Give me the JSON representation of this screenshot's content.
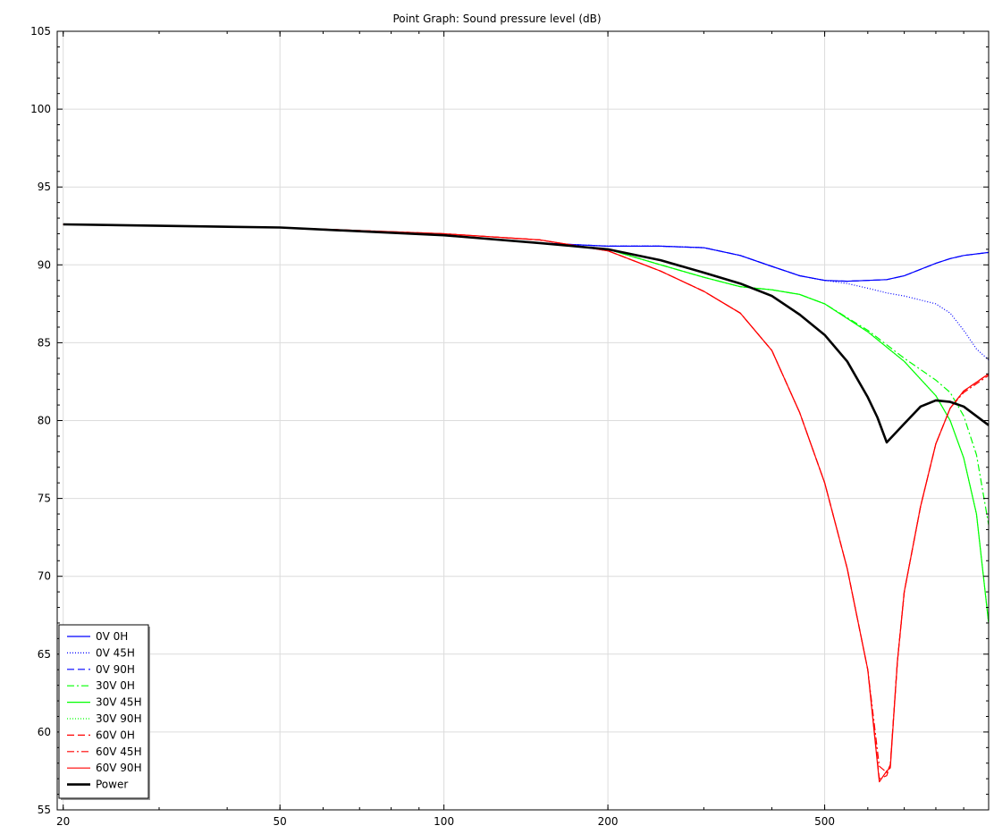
{
  "chart_data": {
    "type": "line",
    "title": "Point Graph: Sound pressure level (dB)",
    "xlabel": "",
    "ylabel": "",
    "xscale": "log",
    "xlim": [
      19.5,
      1000
    ],
    "ylim": [
      55,
      105
    ],
    "xticks": [
      20,
      50,
      100,
      200,
      500
    ],
    "yticks": [
      55,
      60,
      65,
      70,
      75,
      80,
      85,
      90,
      95,
      100,
      105
    ],
    "grid": true,
    "legend_position": "bottom-left",
    "series": [
      {
        "name": "0V 0H",
        "color": "#0000ff",
        "dash": "solid",
        "width": 1.2,
        "points": [
          [
            20,
            92.6
          ],
          [
            50,
            92.4
          ],
          [
            100,
            91.9
          ],
          [
            150,
            91.4
          ],
          [
            200,
            91.2
          ],
          [
            250,
            91.2
          ],
          [
            300,
            91.1
          ],
          [
            350,
            90.6
          ],
          [
            400,
            89.9
          ],
          [
            450,
            89.3
          ],
          [
            500,
            89.0
          ],
          [
            550,
            88.95
          ],
          [
            600,
            89.0
          ],
          [
            650,
            89.05
          ],
          [
            700,
            89.3
          ],
          [
            800,
            90.1
          ],
          [
            850,
            90.4
          ],
          [
            900,
            90.6
          ],
          [
            1000,
            90.8
          ]
        ]
      },
      {
        "name": "0V 45H",
        "color": "#0000ff",
        "dash": "1,2",
        "width": 1.2,
        "points": [
          [
            20,
            92.6
          ],
          [
            50,
            92.4
          ],
          [
            100,
            91.9
          ],
          [
            150,
            91.4
          ],
          [
            200,
            91.2
          ],
          [
            250,
            91.2
          ],
          [
            300,
            91.1
          ],
          [
            350,
            90.6
          ],
          [
            400,
            89.9
          ],
          [
            450,
            89.3
          ],
          [
            500,
            89.0
          ],
          [
            550,
            88.8
          ],
          [
            600,
            88.5
          ],
          [
            650,
            88.2
          ],
          [
            700,
            88.0
          ],
          [
            800,
            87.5
          ],
          [
            850,
            86.9
          ],
          [
            900,
            85.8
          ],
          [
            950,
            84.6
          ],
          [
            1000,
            83.9
          ]
        ]
      },
      {
        "name": "0V 90H",
        "color": "#0000ff",
        "dash": "8,4",
        "width": 1.2,
        "points": [
          [
            20,
            92.6
          ],
          [
            50,
            92.4
          ],
          [
            100,
            91.9
          ],
          [
            150,
            91.4
          ],
          [
            200,
            91.2
          ],
          [
            250,
            91.2
          ],
          [
            300,
            91.1
          ],
          [
            350,
            90.6
          ],
          [
            400,
            89.9
          ],
          [
            450,
            89.3
          ],
          [
            500,
            89.0
          ],
          [
            550,
            88.95
          ],
          [
            600,
            89.0
          ],
          [
            650,
            89.05
          ],
          [
            700,
            89.3
          ],
          [
            800,
            90.1
          ],
          [
            850,
            90.4
          ],
          [
            900,
            90.6
          ],
          [
            1000,
            90.8
          ]
        ]
      },
      {
        "name": "30V 0H",
        "color": "#00ff00",
        "dash": "8,3,2,3",
        "width": 1.2,
        "points": [
          [
            20,
            92.6
          ],
          [
            50,
            92.4
          ],
          [
            100,
            91.9
          ],
          [
            150,
            91.4
          ],
          [
            200,
            91.0
          ],
          [
            250,
            90.0
          ],
          [
            300,
            89.2
          ],
          [
            350,
            88.6
          ],
          [
            400,
            88.4
          ],
          [
            450,
            88.1
          ],
          [
            500,
            87.5
          ],
          [
            600,
            85.8
          ],
          [
            700,
            84.0
          ],
          [
            800,
            82.6
          ],
          [
            850,
            81.8
          ],
          [
            900,
            80.3
          ],
          [
            950,
            77.8
          ],
          [
            1000,
            73.3
          ]
        ]
      },
      {
        "name": "30V 45H",
        "color": "#00ff00",
        "dash": "solid",
        "width": 1.2,
        "points": [
          [
            20,
            92.6
          ],
          [
            50,
            92.4
          ],
          [
            100,
            91.9
          ],
          [
            150,
            91.4
          ],
          [
            200,
            91.0
          ],
          [
            250,
            90.0
          ],
          [
            300,
            89.2
          ],
          [
            350,
            88.6
          ],
          [
            400,
            88.4
          ],
          [
            450,
            88.1
          ],
          [
            500,
            87.5
          ],
          [
            600,
            85.7
          ],
          [
            700,
            83.8
          ],
          [
            800,
            81.6
          ],
          [
            850,
            80.0
          ],
          [
            900,
            77.6
          ],
          [
            950,
            74.0
          ],
          [
            1000,
            67.0
          ]
        ]
      },
      {
        "name": "30V 90H",
        "color": "#00ff00",
        "dash": "1,2",
        "width": 1.2,
        "points": [
          [
            20,
            92.6
          ],
          [
            50,
            92.4
          ],
          [
            100,
            91.9
          ],
          [
            150,
            91.4
          ],
          [
            200,
            91.0
          ],
          [
            250,
            90.0
          ],
          [
            300,
            89.2
          ],
          [
            350,
            88.6
          ],
          [
            400,
            88.4
          ],
          [
            450,
            88.1
          ],
          [
            500,
            87.5
          ],
          [
            600,
            85.7
          ],
          [
            700,
            83.8
          ],
          [
            800,
            81.6
          ],
          [
            850,
            80.0
          ],
          [
            900,
            77.6
          ],
          [
            950,
            74.0
          ],
          [
            1000,
            67.0
          ]
        ]
      },
      {
        "name": "60V 0H",
        "color": "#ff0000",
        "dash": "8,4",
        "width": 1.2,
        "points": [
          [
            20,
            92.6
          ],
          [
            50,
            92.4
          ],
          [
            100,
            92.0
          ],
          [
            150,
            91.6
          ],
          [
            200,
            90.9
          ],
          [
            250,
            89.6
          ],
          [
            300,
            88.3
          ],
          [
            350,
            86.9
          ],
          [
            400,
            84.5
          ],
          [
            450,
            80.5
          ],
          [
            500,
            76.0
          ],
          [
            550,
            70.5
          ],
          [
            600,
            64.0
          ],
          [
            630,
            57.0
          ],
          [
            650,
            57.2
          ],
          [
            660,
            57.9
          ],
          [
            680,
            64.5
          ],
          [
            700,
            69.0
          ],
          [
            750,
            74.5
          ],
          [
            800,
            78.5
          ],
          [
            850,
            80.8
          ],
          [
            900,
            81.9
          ],
          [
            1000,
            83.0
          ]
        ]
      },
      {
        "name": "60V 45H",
        "color": "#ff0000",
        "dash": "8,3,2,3",
        "width": 1.2,
        "points": [
          [
            20,
            92.6
          ],
          [
            50,
            92.4
          ],
          [
            100,
            92.0
          ],
          [
            150,
            91.6
          ],
          [
            200,
            90.9
          ],
          [
            250,
            89.6
          ],
          [
            300,
            88.3
          ],
          [
            350,
            86.9
          ],
          [
            400,
            84.5
          ],
          [
            450,
            80.5
          ],
          [
            500,
            76.0
          ],
          [
            550,
            70.5
          ],
          [
            600,
            64.0
          ],
          [
            630,
            57.8
          ],
          [
            650,
            57.4
          ],
          [
            660,
            57.9
          ],
          [
            680,
            64.5
          ],
          [
            700,
            69.0
          ],
          [
            750,
            74.5
          ],
          [
            800,
            78.5
          ],
          [
            850,
            80.8
          ],
          [
            900,
            81.8
          ],
          [
            1000,
            82.9
          ]
        ]
      },
      {
        "name": "60V 90H",
        "color": "#ff0000",
        "dash": "solid",
        "width": 1.2,
        "points": [
          [
            20,
            92.6
          ],
          [
            50,
            92.4
          ],
          [
            100,
            92.0
          ],
          [
            150,
            91.6
          ],
          [
            200,
            90.9
          ],
          [
            250,
            89.6
          ],
          [
            300,
            88.3
          ],
          [
            350,
            86.9
          ],
          [
            400,
            84.5
          ],
          [
            450,
            80.5
          ],
          [
            500,
            76.0
          ],
          [
            550,
            70.5
          ],
          [
            600,
            64.0
          ],
          [
            630,
            56.8
          ],
          [
            650,
            57.5
          ],
          [
            660,
            57.7
          ],
          [
            680,
            64.5
          ],
          [
            700,
            69.0
          ],
          [
            750,
            74.5
          ],
          [
            800,
            78.5
          ],
          [
            850,
            80.8
          ],
          [
            900,
            81.9
          ],
          [
            1000,
            83.0
          ]
        ]
      },
      {
        "name": "Power",
        "color": "#000000",
        "dash": "solid",
        "width": 2.6,
        "points": [
          [
            20,
            92.6
          ],
          [
            50,
            92.4
          ],
          [
            100,
            91.9
          ],
          [
            150,
            91.4
          ],
          [
            200,
            91.0
          ],
          [
            250,
            90.3
          ],
          [
            300,
            89.5
          ],
          [
            350,
            88.8
          ],
          [
            400,
            88.0
          ],
          [
            450,
            86.8
          ],
          [
            500,
            85.5
          ],
          [
            550,
            83.8
          ],
          [
            600,
            81.5
          ],
          [
            625,
            80.2
          ],
          [
            650,
            78.6
          ],
          [
            700,
            79.8
          ],
          [
            750,
            80.9
          ],
          [
            800,
            81.3
          ],
          [
            850,
            81.2
          ],
          [
            900,
            80.9
          ],
          [
            1000,
            79.7
          ]
        ]
      }
    ]
  }
}
